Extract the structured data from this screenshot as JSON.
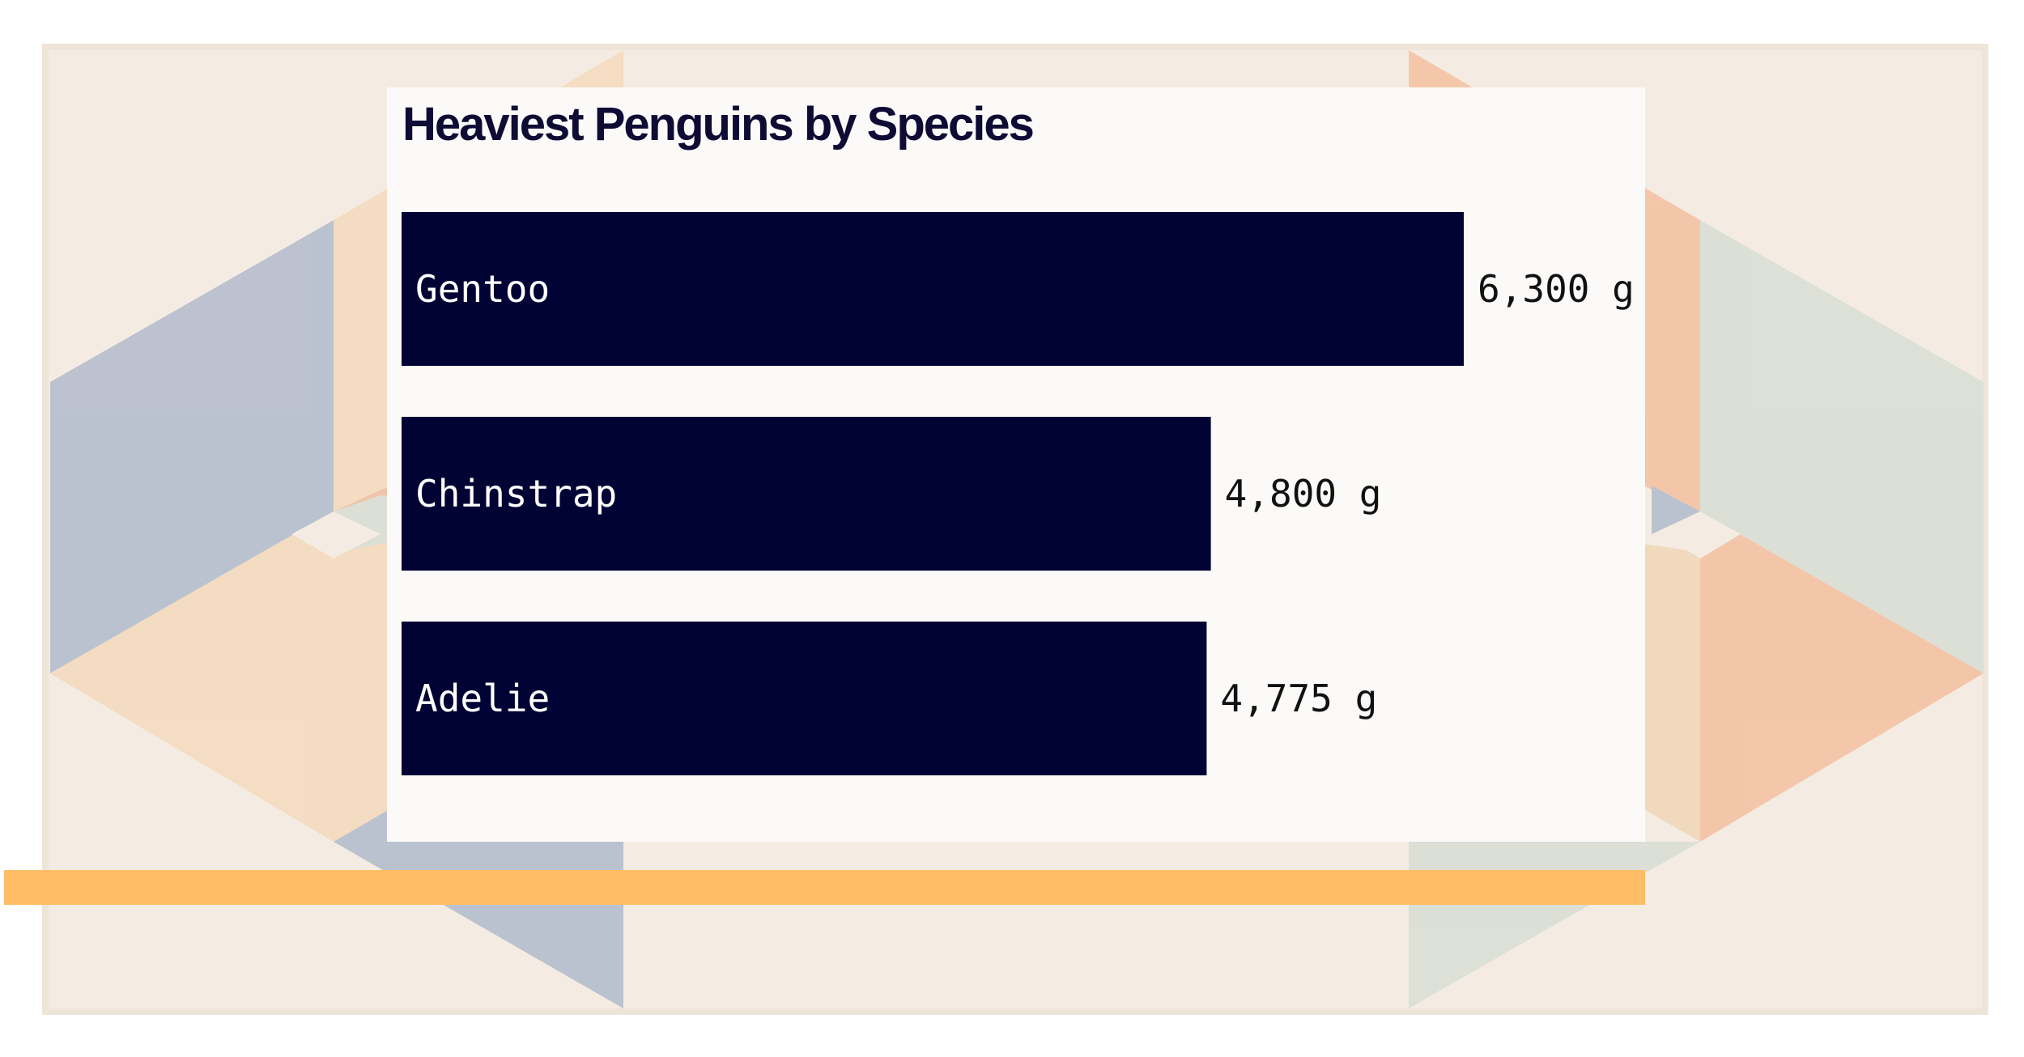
{
  "chart_data": {
    "type": "bar",
    "orientation": "horizontal",
    "title": "Heaviest Penguins by Species",
    "categories": [
      "Gentoo",
      "Chinstrap",
      "Adelie"
    ],
    "values": [
      6300,
      4800,
      4775
    ],
    "value_labels": [
      "6,300 g",
      "4,800 g",
      "4,775 g"
    ],
    "unit": "g",
    "xlim": [
      0,
      6300
    ],
    "xlabel": "",
    "ylabel": "",
    "grid": false,
    "legend": "none"
  },
  "colors": {
    "bar": "#000333",
    "bar_label": "#ffffff",
    "value_label": "#111111",
    "title": "#0e0c34",
    "accent": "#ffbd66"
  }
}
